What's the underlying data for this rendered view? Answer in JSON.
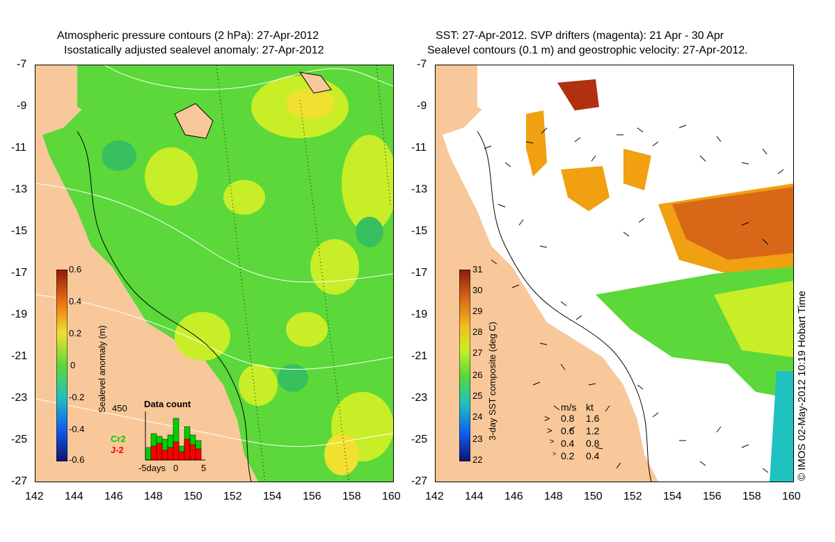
{
  "left_panel": {
    "title_line1": "Atmospheric pressure contours (2 hPa): 27-Apr-2012",
    "title_line2": "Isostatically adjusted sealevel anomaly: 27-Apr-2012",
    "colorbar_label": "Sealevel anomaly (m)",
    "colorbar_ticks": [
      "0.6",
      "0.4",
      "0.2",
      "0",
      "-0.2",
      "-0.4",
      "-0.6"
    ],
    "inset": {
      "title": "Data count",
      "ymax": "450",
      "xlabel_left": "-5days",
      "xlabel_mid": "0",
      "xlabel_right": "5",
      "series1": "Cr2",
      "series2": "J-2",
      "series1_color": "#00d000",
      "series2_color": "#ff0000"
    }
  },
  "right_panel": {
    "title_line1": "SST: 27-Apr-2012. SVP drifters (magenta): 21 Apr - 30 Apr",
    "title_line2": "Sealevel contours (0.1 m) and geostrophic velocity: 27-Apr-2012.",
    "colorbar_label": "3-day SST composite (deg C)",
    "colorbar_ticks": [
      "31",
      "30",
      "29",
      "28",
      "27",
      "26",
      "25",
      "24",
      "23",
      "22"
    ],
    "speed_header_ms": "m/s",
    "speed_header_kt": "kt",
    "speed_rows": [
      {
        "ms": "0.8",
        "kt": "1.6"
      },
      {
        "ms": "0.6",
        "kt": "1.2"
      },
      {
        "ms": "0.4",
        "kt": "0.8"
      },
      {
        "ms": "0.2",
        "kt": "0.4"
      }
    ],
    "credit": "© IMOS 02-May-2012 10:19 Hobart Time"
  },
  "axes": {
    "lat_ticks": [
      "-7",
      "-9",
      "-11",
      "-13",
      "-15",
      "-17",
      "-19",
      "-21",
      "-23",
      "-25",
      "-27"
    ],
    "lon_ticks": [
      "142",
      "144",
      "146",
      "148",
      "150",
      "152",
      "154",
      "156",
      "158",
      "160"
    ]
  },
  "colors": {
    "land": "#f8c89a",
    "sla_green": "#5cd83a",
    "sla_yellow": "#c8ee28",
    "sst_orange": "#f0a010",
    "sst_red": "#b03010"
  }
}
